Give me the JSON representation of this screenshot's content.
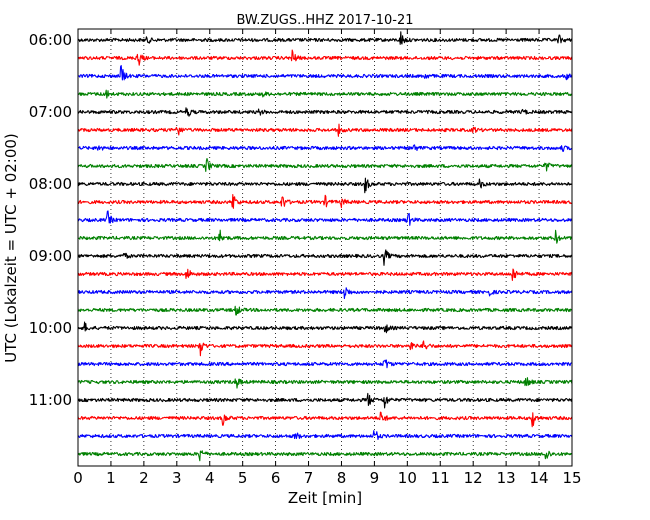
{
  "chart_data": {
    "type": "line",
    "subtype": "dayplot-seismogram",
    "title": "BW.ZUGS..HHZ 2017-10-21",
    "xlabel": "Zeit  [min]",
    "ylabel": "UTC (Lokalzeit = UTC + 02:00)",
    "xlim": [
      0,
      15
    ],
    "xticks": [
      "0",
      "1",
      "2",
      "3",
      "4",
      "5",
      "6",
      "7",
      "8",
      "9",
      "10",
      "11",
      "12",
      "13",
      "14",
      "15"
    ],
    "yticks": [
      "06:00",
      "07:00",
      "08:00",
      "09:00",
      "10:00",
      "11:00"
    ],
    "grid": "vertical dotted at each minute",
    "colors": [
      "#000000",
      "#ff0000",
      "#0000ff",
      "#008000"
    ],
    "rows": [
      {
        "start": "06:00",
        "color": "#000000",
        "events": [
          [
            2.1,
            4
          ],
          [
            9.8,
            9
          ],
          [
            14.6,
            5
          ]
        ]
      },
      {
        "start": "06:15",
        "color": "#ff0000",
        "events": [
          [
            1.8,
            14
          ],
          [
            6.5,
            9
          ]
        ]
      },
      {
        "start": "06:30",
        "color": "#0000ff",
        "events": [
          [
            1.3,
            14
          ],
          [
            10.5,
            4
          ],
          [
            14.8,
            4
          ]
        ]
      },
      {
        "start": "06:45",
        "color": "#008000",
        "events": [
          [
            0.8,
            9
          ],
          [
            5.6,
            3
          ]
        ]
      },
      {
        "start": "07:00",
        "color": "#000000",
        "events": [
          [
            3.3,
            7
          ],
          [
            5.5,
            3
          ],
          [
            13.5,
            3
          ]
        ]
      },
      {
        "start": "07:15",
        "color": "#ff0000",
        "events": [
          [
            3.0,
            9
          ],
          [
            7.9,
            6
          ],
          [
            12.0,
            3
          ]
        ]
      },
      {
        "start": "07:30",
        "color": "#0000ff",
        "events": [
          [
            0.6,
            4
          ],
          [
            10.2,
            4
          ],
          [
            14.7,
            3
          ]
        ]
      },
      {
        "start": "07:45",
        "color": "#008000",
        "events": [
          [
            3.9,
            9
          ],
          [
            14.2,
            6
          ]
        ]
      },
      {
        "start": "08:00",
        "color": "#000000",
        "events": [
          [
            8.7,
            12
          ],
          [
            12.2,
            5
          ]
        ]
      },
      {
        "start": "08:15",
        "color": "#ff0000",
        "events": [
          [
            4.7,
            11
          ],
          [
            6.2,
            9
          ],
          [
            7.5,
            6
          ],
          [
            8.0,
            5
          ]
        ]
      },
      {
        "start": "08:30",
        "color": "#0000ff",
        "events": [
          [
            0.9,
            9
          ],
          [
            10.0,
            11
          ]
        ]
      },
      {
        "start": "08:45",
        "color": "#008000",
        "events": [
          [
            4.3,
            9
          ],
          [
            14.5,
            7
          ]
        ]
      },
      {
        "start": "09:00",
        "color": "#000000",
        "events": [
          [
            1.4,
            3
          ],
          [
            9.3,
            10
          ]
        ]
      },
      {
        "start": "09:15",
        "color": "#ff0000",
        "events": [
          [
            3.3,
            9
          ],
          [
            13.2,
            10
          ]
        ]
      },
      {
        "start": "09:30",
        "color": "#0000ff",
        "events": [
          [
            8.1,
            9
          ],
          [
            12.5,
            3
          ]
        ]
      },
      {
        "start": "09:45",
        "color": "#008000",
        "events": [
          [
            4.8,
            7
          ]
        ]
      },
      {
        "start": "10:00",
        "color": "#000000",
        "events": [
          [
            0.2,
            5
          ],
          [
            9.3,
            8
          ]
        ]
      },
      {
        "start": "10:15",
        "color": "#ff0000",
        "events": [
          [
            3.7,
            12
          ],
          [
            10.5,
            8
          ],
          [
            10.1,
            5
          ]
        ]
      },
      {
        "start": "10:30",
        "color": "#0000ff",
        "events": [
          [
            9.3,
            9
          ]
        ]
      },
      {
        "start": "10:45",
        "color": "#008000",
        "events": [
          [
            4.8,
            8
          ],
          [
            13.6,
            8
          ]
        ]
      },
      {
        "start": "11:00",
        "color": "#000000",
        "events": [
          [
            8.8,
            8
          ],
          [
            9.3,
            9
          ]
        ]
      },
      {
        "start": "11:15",
        "color": "#ff0000",
        "events": [
          [
            4.4,
            8
          ],
          [
            9.2,
            9
          ],
          [
            13.8,
            10
          ]
        ]
      },
      {
        "start": "11:30",
        "color": "#0000ff",
        "events": [
          [
            6.6,
            5
          ],
          [
            9.0,
            9
          ]
        ]
      },
      {
        "start": "11:45",
        "color": "#008000",
        "events": [
          [
            3.7,
            8
          ],
          [
            14.2,
            9
          ]
        ]
      }
    ]
  }
}
